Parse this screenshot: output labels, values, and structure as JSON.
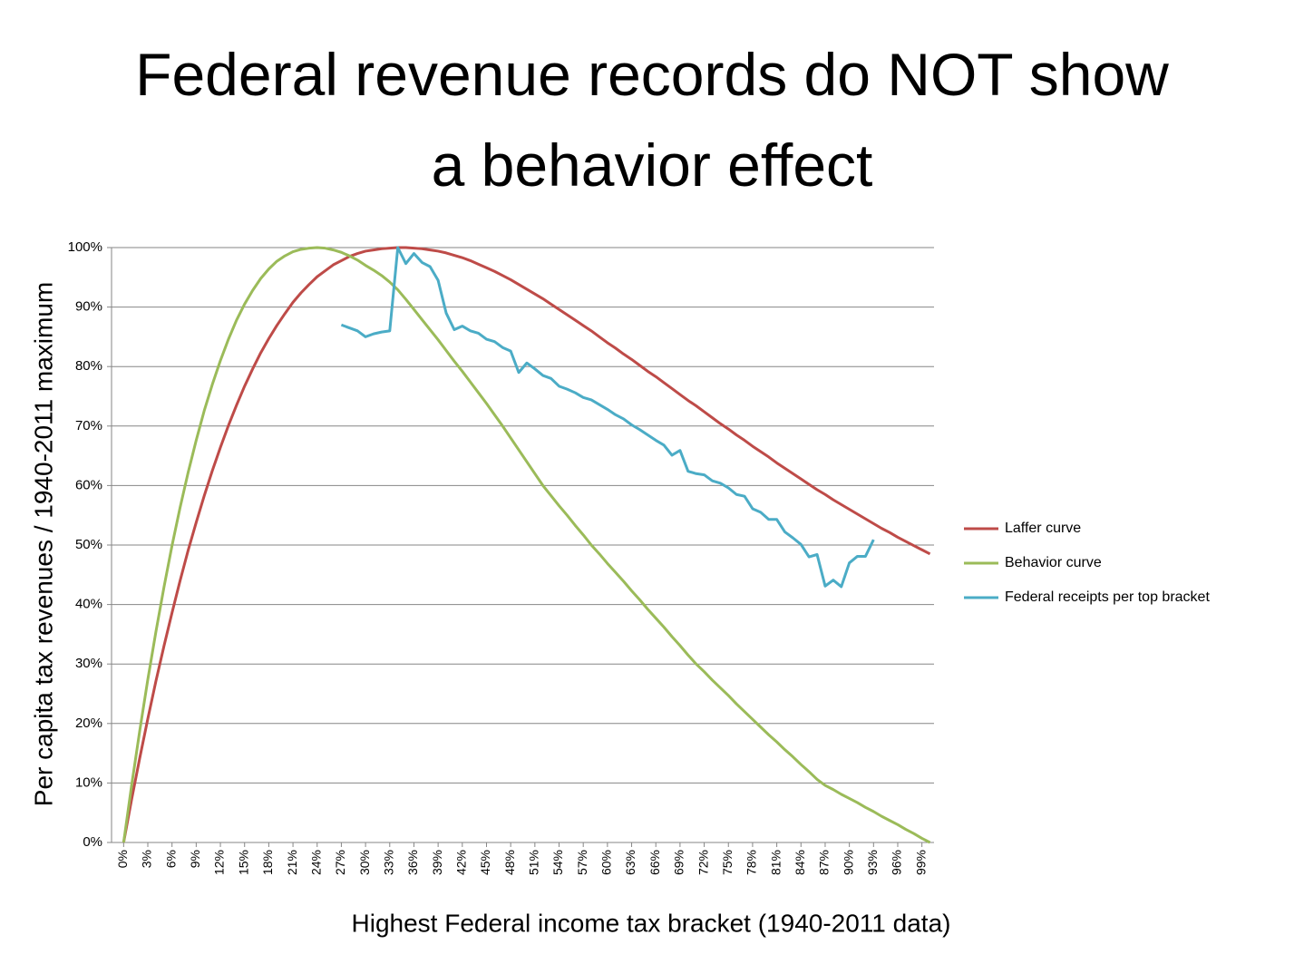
{
  "chart_data": {
    "type": "line",
    "title": "Federal revenue records do NOT show a behavior effect",
    "xlabel": "Highest Federal income tax bracket (1940-2011 data)",
    "ylabel": "Per capita tax revenues / 1940-2011 maximum",
    "x": [
      0,
      1,
      2,
      3,
      4,
      5,
      6,
      7,
      8,
      9,
      10,
      11,
      12,
      13,
      14,
      15,
      16,
      17,
      18,
      19,
      20,
      21,
      22,
      23,
      24,
      25,
      26,
      27,
      28,
      29,
      30,
      31,
      32,
      33,
      34,
      35,
      36,
      37,
      38,
      39,
      40,
      41,
      42,
      43,
      44,
      45,
      46,
      47,
      48,
      49,
      50,
      51,
      52,
      53,
      54,
      55,
      56,
      57,
      58,
      59,
      60,
      61,
      62,
      63,
      64,
      65,
      66,
      67,
      68,
      69,
      70,
      71,
      72,
      73,
      74,
      75,
      76,
      77,
      78,
      79,
      80,
      81,
      82,
      83,
      84,
      85,
      86,
      87,
      88,
      89,
      90,
      91,
      92,
      93,
      94,
      95,
      96,
      97,
      98,
      99,
      100
    ],
    "xlim": [
      -1.5,
      100.5
    ],
    "xticks": [
      {
        "value": 0,
        "label": "0%"
      },
      {
        "value": 3,
        "label": "3%"
      },
      {
        "value": 6,
        "label": "6%"
      },
      {
        "value": 9,
        "label": "9%"
      },
      {
        "value": 12,
        "label": "12%"
      },
      {
        "value": 15,
        "label": "15%"
      },
      {
        "value": 18,
        "label": "18%"
      },
      {
        "value": 21,
        "label": "21%"
      },
      {
        "value": 24,
        "label": "24%"
      },
      {
        "value": 27,
        "label": "27%"
      },
      {
        "value": 30,
        "label": "30%"
      },
      {
        "value": 33,
        "label": "33%"
      },
      {
        "value": 36,
        "label": "36%"
      },
      {
        "value": 39,
        "label": "39%"
      },
      {
        "value": 42,
        "label": "42%"
      },
      {
        "value": 45,
        "label": "45%"
      },
      {
        "value": 48,
        "label": "48%"
      },
      {
        "value": 51,
        "label": "51%"
      },
      {
        "value": 54,
        "label": "54%"
      },
      {
        "value": 57,
        "label": "57%"
      },
      {
        "value": 60,
        "label": "60%"
      },
      {
        "value": 63,
        "label": "63%"
      },
      {
        "value": 66,
        "label": "66%"
      },
      {
        "value": 69,
        "label": "69%"
      },
      {
        "value": 72,
        "label": "72%"
      },
      {
        "value": 75,
        "label": "75%"
      },
      {
        "value": 78,
        "label": "78%"
      },
      {
        "value": 81,
        "label": "81%"
      },
      {
        "value": 84,
        "label": "84%"
      },
      {
        "value": 87,
        "label": "87%"
      },
      {
        "value": 90,
        "label": "90%"
      },
      {
        "value": 93,
        "label": "93%"
      },
      {
        "value": 96,
        "label": "96%"
      },
      {
        "value": 99,
        "label": "99%"
      }
    ],
    "ylim": [
      0,
      100
    ],
    "yticks": [
      {
        "value": 0,
        "label": "0%"
      },
      {
        "value": 10,
        "label": "10%"
      },
      {
        "value": 20,
        "label": "20%"
      },
      {
        "value": 30,
        "label": "30%"
      },
      {
        "value": 40,
        "label": "40%"
      },
      {
        "value": 50,
        "label": "50%"
      },
      {
        "value": 60,
        "label": "60%"
      },
      {
        "value": 70,
        "label": "70%"
      },
      {
        "value": 80,
        "label": "80%"
      },
      {
        "value": 90,
        "label": "90%"
      },
      {
        "value": 100,
        "label": "100%"
      }
    ],
    "grid": true,
    "legend": "right",
    "series": [
      {
        "name": "Laffer curve",
        "color": "#be4b48",
        "values": [
          0,
          7.3,
          14.2,
          20.8,
          27.1,
          33.0,
          38.6,
          44.0,
          49.1,
          53.8,
          58.3,
          62.5,
          66.4,
          70.1,
          73.5,
          76.7,
          79.6,
          82.3,
          84.7,
          86.9,
          88.9,
          90.8,
          92.4,
          93.8,
          95.1,
          96.1,
          97.1,
          97.8,
          98.5,
          99.0,
          99.4,
          99.6,
          99.8,
          99.9,
          100,
          100,
          99.9,
          99.8,
          99.6,
          99.4,
          99.1,
          98.7,
          98.3,
          97.8,
          97.2,
          96.6,
          96.0,
          95.3,
          94.6,
          93.8,
          93.0,
          92.2,
          91.4,
          90.5,
          89.6,
          88.7,
          87.8,
          86.9,
          86.0,
          85.0,
          84.0,
          83.1,
          82.1,
          81.2,
          80.2,
          79.2,
          78.3,
          77.3,
          76.3,
          75.3,
          74.3,
          73.4,
          72.4,
          71.4,
          70.4,
          69.5,
          68.5,
          67.6,
          66.6,
          65.7,
          64.8,
          63.8,
          62.9,
          62.0,
          61.1,
          60.2,
          59.3,
          58.5,
          57.6,
          56.8,
          56.0,
          55.2,
          54.4,
          53.6,
          52.8,
          52.1,
          51.3,
          50.6,
          49.9,
          49.2,
          48.5
        ]
      },
      {
        "name": "Behavior curve",
        "color": "#9bbb59",
        "values": [
          0,
          9.7,
          18.8,
          27.4,
          35.4,
          42.9,
          49.9,
          56.3,
          62.2,
          67.6,
          72.6,
          77.0,
          81.0,
          84.6,
          87.8,
          90.5,
          92.8,
          94.8,
          96.4,
          97.7,
          98.6,
          99.3,
          99.7,
          99.9,
          100,
          99.9,
          99.6,
          99.2,
          98.6,
          97.9,
          97.0,
          96.2,
          95.3,
          94.2,
          92.9,
          91.3,
          89.6,
          87.9,
          86.2,
          84.5,
          82.7,
          80.9,
          79.2,
          77.4,
          75.6,
          73.8,
          71.9,
          70.0,
          68.0,
          66.0,
          64.0,
          62.0,
          60.0,
          58.3,
          56.6,
          55.0,
          53.3,
          51.7,
          50.0,
          48.5,
          46.9,
          45.4,
          43.9,
          42.3,
          40.8,
          39.2,
          37.7,
          36.2,
          34.6,
          33.1,
          31.5,
          30.0,
          28.7,
          27.3,
          26.0,
          24.7,
          23.3,
          22.0,
          20.7,
          19.4,
          18.1,
          16.9,
          15.6,
          14.4,
          13.1,
          11.9,
          10.6,
          9.6,
          8.9,
          8.1,
          7.4,
          6.7,
          5.9,
          5.2,
          4.4,
          3.7,
          3.0,
          2.2,
          1.5,
          0.7,
          0
        ]
      },
      {
        "name": "Federal receipts per top bracket",
        "color": "#4bacc6",
        "values": [
          null,
          null,
          null,
          null,
          null,
          null,
          null,
          null,
          null,
          null,
          null,
          null,
          null,
          null,
          null,
          null,
          null,
          null,
          null,
          null,
          null,
          null,
          null,
          null,
          null,
          null,
          null,
          87,
          86.5,
          86,
          85,
          85.5,
          85.8,
          86,
          100,
          97.3,
          99,
          97.5,
          96.8,
          94.5,
          89,
          86.2,
          86.8,
          86,
          85.6,
          84.6,
          84.2,
          83.2,
          82.6,
          79,
          80.6,
          79.6,
          78.5,
          78,
          76.7,
          76.2,
          75.6,
          74.8,
          74.4,
          73.6,
          72.8,
          71.9,
          71.2,
          70.2,
          69.4,
          68.5,
          67.6,
          66.8,
          65.1,
          65.9,
          62.4,
          62,
          61.8,
          60.8,
          60.4,
          59.6,
          58.5,
          58.2,
          56.1,
          55.5,
          54.3,
          54.3,
          52.2,
          51.2,
          50.1,
          48,
          48.4,
          43.1,
          44.1,
          43,
          47,
          48.1,
          48.1,
          50.9,
          null,
          null,
          null,
          null,
          null,
          null,
          null
        ]
      }
    ]
  }
}
